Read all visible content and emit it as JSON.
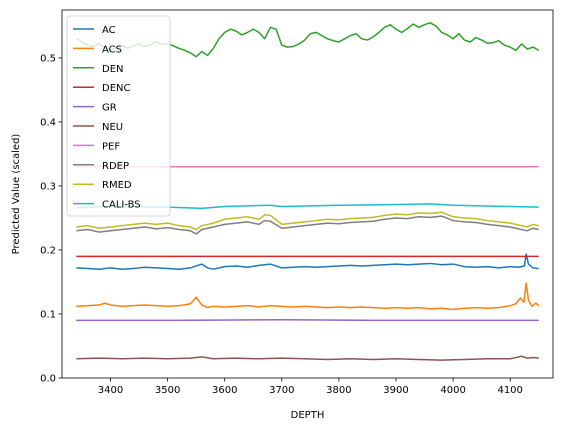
{
  "chart_data": {
    "type": "line",
    "title": "",
    "xlabel": "DEPTH",
    "ylabel": "Predicted Value (scaled)",
    "xlim": [
      3315,
      4175
    ],
    "ylim": [
      0.0,
      0.575
    ],
    "xticks": [
      3400,
      3500,
      3600,
      3700,
      3800,
      3900,
      4000,
      4100
    ],
    "yticks": [
      0.0,
      0.1,
      0.2,
      0.3,
      0.4,
      0.5
    ],
    "ytick_labels": [
      "0.0",
      "0.1",
      "0.2",
      "0.3",
      "0.4",
      "0.5"
    ],
    "grid": false,
    "legend": "upper-left",
    "series": [
      {
        "name": "AC",
        "color": "#1f77b4",
        "x": [
          3340,
          3360,
          3380,
          3400,
          3420,
          3440,
          3460,
          3480,
          3500,
          3520,
          3540,
          3560,
          3570,
          3580,
          3600,
          3620,
          3640,
          3660,
          3680,
          3700,
          3720,
          3740,
          3760,
          3780,
          3800,
          3820,
          3840,
          3860,
          3880,
          3900,
          3920,
          3940,
          3960,
          3980,
          4000,
          4020,
          4040,
          4060,
          4080,
          4100,
          4115,
          4125,
          4128,
          4132,
          4140,
          4150
        ],
        "y": [
          0.172,
          0.171,
          0.17,
          0.172,
          0.17,
          0.171,
          0.173,
          0.172,
          0.171,
          0.17,
          0.172,
          0.178,
          0.172,
          0.17,
          0.174,
          0.175,
          0.173,
          0.176,
          0.178,
          0.172,
          0.173,
          0.174,
          0.173,
          0.174,
          0.175,
          0.176,
          0.175,
          0.176,
          0.177,
          0.178,
          0.177,
          0.178,
          0.179,
          0.177,
          0.178,
          0.174,
          0.173,
          0.174,
          0.172,
          0.174,
          0.173,
          0.175,
          0.194,
          0.178,
          0.172,
          0.171
        ]
      },
      {
        "name": "ACS",
        "color": "#ff7f0e",
        "x": [
          3340,
          3360,
          3380,
          3390,
          3400,
          3420,
          3440,
          3460,
          3480,
          3500,
          3520,
          3540,
          3550,
          3560,
          3570,
          3580,
          3600,
          3620,
          3640,
          3660,
          3680,
          3700,
          3720,
          3740,
          3760,
          3780,
          3800,
          3820,
          3840,
          3860,
          3880,
          3900,
          3920,
          3940,
          3960,
          3980,
          4000,
          4020,
          4040,
          4060,
          4080,
          4100,
          4110,
          4118,
          4124,
          4128,
          4132,
          4138,
          4145,
          4150
        ],
        "y": [
          0.112,
          0.113,
          0.114,
          0.117,
          0.114,
          0.112,
          0.113,
          0.114,
          0.113,
          0.112,
          0.113,
          0.116,
          0.126,
          0.114,
          0.11,
          0.112,
          0.111,
          0.112,
          0.113,
          0.111,
          0.113,
          0.112,
          0.111,
          0.112,
          0.111,
          0.11,
          0.111,
          0.11,
          0.111,
          0.11,
          0.109,
          0.11,
          0.109,
          0.11,
          0.108,
          0.109,
          0.107,
          0.109,
          0.11,
          0.109,
          0.11,
          0.113,
          0.116,
          0.125,
          0.118,
          0.148,
          0.122,
          0.112,
          0.117,
          0.113
        ]
      },
      {
        "name": "DEN",
        "color": "#2ca02c",
        "x": [
          3340,
          3350,
          3360,
          3370,
          3380,
          3390,
          3400,
          3410,
          3420,
          3430,
          3440,
          3450,
          3460,
          3470,
          3480,
          3490,
          3500,
          3510,
          3520,
          3530,
          3540,
          3550,
          3560,
          3570,
          3580,
          3590,
          3600,
          3610,
          3620,
          3630,
          3640,
          3650,
          3660,
          3670,
          3680,
          3690,
          3700,
          3710,
          3720,
          3730,
          3740,
          3750,
          3760,
          3770,
          3780,
          3790,
          3800,
          3810,
          3820,
          3830,
          3840,
          3850,
          3860,
          3870,
          3880,
          3890,
          3900,
          3910,
          3920,
          3930,
          3940,
          3950,
          3960,
          3970,
          3980,
          3990,
          4000,
          4010,
          4020,
          4030,
          4040,
          4050,
          4060,
          4070,
          4080,
          4090,
          4100,
          4110,
          4120,
          4130,
          4140,
          4150
        ],
        "y": [
          0.53,
          0.525,
          0.52,
          0.518,
          0.522,
          0.516,
          0.512,
          0.517,
          0.52,
          0.515,
          0.519,
          0.522,
          0.518,
          0.521,
          0.525,
          0.522,
          0.522,
          0.519,
          0.515,
          0.512,
          0.508,
          0.502,
          0.51,
          0.504,
          0.515,
          0.53,
          0.54,
          0.545,
          0.542,
          0.536,
          0.54,
          0.545,
          0.54,
          0.53,
          0.548,
          0.545,
          0.52,
          0.517,
          0.518,
          0.522,
          0.528,
          0.538,
          0.54,
          0.535,
          0.53,
          0.527,
          0.525,
          0.53,
          0.535,
          0.538,
          0.53,
          0.528,
          0.533,
          0.54,
          0.548,
          0.552,
          0.545,
          0.54,
          0.546,
          0.553,
          0.548,
          0.552,
          0.555,
          0.55,
          0.54,
          0.536,
          0.53,
          0.538,
          0.528,
          0.525,
          0.532,
          0.528,
          0.523,
          0.524,
          0.527,
          0.52,
          0.517,
          0.512,
          0.522,
          0.514,
          0.517,
          0.512
        ]
      },
      {
        "name": "DENC",
        "color": "#d62728",
        "x": [
          3340,
          4150
        ],
        "y": [
          0.19,
          0.19
        ]
      },
      {
        "name": "GR",
        "color": "#9467bd",
        "x": [
          3340,
          3500,
          3700,
          3900,
          4150
        ],
        "y": [
          0.09,
          0.09,
          0.091,
          0.09,
          0.09
        ]
      },
      {
        "name": "NEU",
        "color": "#8c564b",
        "x": [
          3340,
          3380,
          3420,
          3460,
          3500,
          3540,
          3560,
          3580,
          3620,
          3660,
          3700,
          3740,
          3780,
          3820,
          3860,
          3900,
          3940,
          3980,
          4020,
          4060,
          4100,
          4120,
          4130,
          4140,
          4150
        ],
        "y": [
          0.03,
          0.031,
          0.03,
          0.031,
          0.03,
          0.031,
          0.033,
          0.03,
          0.031,
          0.03,
          0.031,
          0.03,
          0.029,
          0.03,
          0.029,
          0.03,
          0.029,
          0.028,
          0.029,
          0.03,
          0.03,
          0.034,
          0.031,
          0.032,
          0.031
        ]
      },
      {
        "name": "PEF",
        "color": "#e377c2",
        "x": [
          3340,
          4150
        ],
        "y": [
          0.33,
          0.33
        ]
      },
      {
        "name": "RDEP",
        "color": "#7f7f7f",
        "x": [
          3340,
          3360,
          3380,
          3400,
          3420,
          3440,
          3460,
          3480,
          3500,
          3520,
          3540,
          3550,
          3560,
          3580,
          3600,
          3620,
          3640,
          3660,
          3670,
          3680,
          3700,
          3720,
          3740,
          3760,
          3780,
          3800,
          3820,
          3840,
          3860,
          3880,
          3900,
          3920,
          3940,
          3960,
          3980,
          4000,
          4020,
          4040,
          4060,
          4080,
          4100,
          4120,
          4130,
          4140,
          4150
        ],
        "y": [
          0.23,
          0.232,
          0.228,
          0.23,
          0.232,
          0.234,
          0.236,
          0.233,
          0.235,
          0.232,
          0.23,
          0.225,
          0.232,
          0.236,
          0.24,
          0.242,
          0.244,
          0.24,
          0.246,
          0.245,
          0.234,
          0.236,
          0.238,
          0.24,
          0.242,
          0.241,
          0.243,
          0.244,
          0.245,
          0.248,
          0.25,
          0.249,
          0.252,
          0.251,
          0.253,
          0.246,
          0.244,
          0.243,
          0.24,
          0.238,
          0.236,
          0.232,
          0.23,
          0.234,
          0.232
        ]
      },
      {
        "name": "RMED",
        "color": "#bcbd22",
        "x": [
          3340,
          3360,
          3380,
          3400,
          3420,
          3440,
          3460,
          3480,
          3500,
          3520,
          3540,
          3550,
          3560,
          3580,
          3600,
          3620,
          3640,
          3660,
          3670,
          3680,
          3700,
          3720,
          3740,
          3760,
          3780,
          3800,
          3820,
          3840,
          3860,
          3880,
          3900,
          3920,
          3940,
          3960,
          3980,
          4000,
          4020,
          4040,
          4060,
          4080,
          4100,
          4120,
          4130,
          4140,
          4150
        ],
        "y": [
          0.236,
          0.238,
          0.234,
          0.236,
          0.238,
          0.24,
          0.242,
          0.24,
          0.242,
          0.238,
          0.236,
          0.232,
          0.238,
          0.242,
          0.248,
          0.25,
          0.252,
          0.248,
          0.255,
          0.254,
          0.24,
          0.242,
          0.244,
          0.246,
          0.248,
          0.247,
          0.249,
          0.25,
          0.251,
          0.254,
          0.256,
          0.255,
          0.258,
          0.257,
          0.259,
          0.252,
          0.25,
          0.249,
          0.246,
          0.244,
          0.242,
          0.238,
          0.236,
          0.24,
          0.238
        ]
      },
      {
        "name": "CALI-BS",
        "color": "#17becf",
        "x": [
          3340,
          3400,
          3500,
          3560,
          3600,
          3680,
          3700,
          3800,
          3900,
          3960,
          4000,
          4100,
          4150
        ],
        "y": [
          0.266,
          0.268,
          0.267,
          0.265,
          0.268,
          0.27,
          0.268,
          0.27,
          0.271,
          0.272,
          0.27,
          0.268,
          0.267
        ]
      }
    ]
  }
}
